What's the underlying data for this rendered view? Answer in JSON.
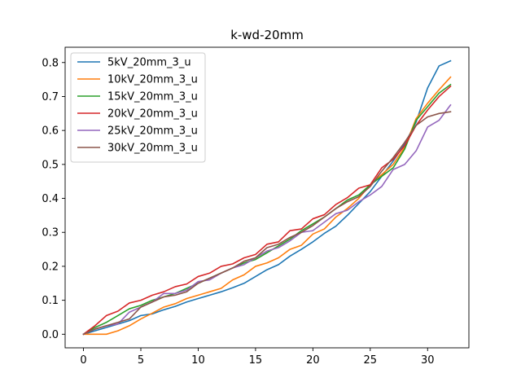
{
  "chart_data": {
    "type": "line",
    "title": "k-wd-20mm",
    "xlabel": "",
    "ylabel": "",
    "xlim": [
      -1.6,
      33.6
    ],
    "ylim": [
      -0.04,
      0.845
    ],
    "xticks": [
      0,
      5,
      10,
      15,
      20,
      25,
      30
    ],
    "xtick_labels": [
      "0",
      "5",
      "10",
      "15",
      "20",
      "25",
      "30"
    ],
    "yticks": [
      0.0,
      0.1,
      0.2,
      0.3,
      0.4,
      0.5,
      0.6,
      0.7,
      0.8
    ],
    "ytick_labels": [
      "0.0",
      "0.1",
      "0.2",
      "0.3",
      "0.4",
      "0.5",
      "0.6",
      "0.7",
      "0.8"
    ],
    "grid": false,
    "legend_position": "top-left",
    "x": [
      0,
      1,
      2,
      3,
      4,
      5,
      6,
      7,
      8,
      9,
      10,
      11,
      12,
      13,
      14,
      15,
      16,
      17,
      18,
      19,
      20,
      21,
      22,
      23,
      24,
      25,
      26,
      27,
      28,
      29,
      30,
      31,
      32
    ],
    "series": [
      {
        "name": "5kV_20mm_3_u",
        "color": "#1f77b4",
        "values": [
          0.0,
          0.01,
          0.02,
          0.03,
          0.04,
          0.055,
          0.06,
          0.072,
          0.082,
          0.095,
          0.105,
          0.115,
          0.125,
          0.137,
          0.15,
          0.17,
          0.19,
          0.205,
          0.23,
          0.25,
          0.272,
          0.297,
          0.318,
          0.35,
          0.385,
          0.42,
          0.465,
          0.51,
          0.56,
          0.625,
          0.725,
          0.79,
          0.805
        ]
      },
      {
        "name": "10kV_20mm_3_u",
        "color": "#ff7f0e",
        "values": [
          0.0,
          0.0,
          0.0,
          0.01,
          0.025,
          0.045,
          0.062,
          0.08,
          0.09,
          0.105,
          0.115,
          0.125,
          0.135,
          0.16,
          0.175,
          0.2,
          0.21,
          0.225,
          0.25,
          0.262,
          0.295,
          0.31,
          0.345,
          0.37,
          0.4,
          0.44,
          0.47,
          0.5,
          0.55,
          0.635,
          0.68,
          0.72,
          0.757
        ]
      },
      {
        "name": "15kV_20mm_3_u",
        "color": "#2ca02c",
        "values": [
          0.0,
          0.02,
          0.035,
          0.055,
          0.075,
          0.085,
          0.1,
          0.11,
          0.12,
          0.135,
          0.15,
          0.165,
          0.18,
          0.195,
          0.21,
          0.22,
          0.24,
          0.26,
          0.28,
          0.305,
          0.325,
          0.345,
          0.37,
          0.395,
          0.41,
          0.44,
          0.465,
          0.49,
          0.545,
          0.63,
          0.67,
          0.71,
          0.735
        ]
      },
      {
        "name": "20kV_20mm_3_u",
        "color": "#d62728",
        "values": [
          0.0,
          0.025,
          0.055,
          0.068,
          0.092,
          0.1,
          0.115,
          0.125,
          0.14,
          0.148,
          0.17,
          0.18,
          0.2,
          0.207,
          0.225,
          0.235,
          0.265,
          0.272,
          0.305,
          0.31,
          0.34,
          0.352,
          0.382,
          0.402,
          0.43,
          0.44,
          0.49,
          0.515,
          0.555,
          0.615,
          0.66,
          0.7,
          0.73
        ]
      },
      {
        "name": "25kV_20mm_3_u",
        "color": "#9467bd",
        "values": [
          0.0,
          0.015,
          0.025,
          0.03,
          0.065,
          0.08,
          0.095,
          0.12,
          0.12,
          0.13,
          0.155,
          0.16,
          0.18,
          0.195,
          0.205,
          0.225,
          0.245,
          0.255,
          0.275,
          0.3,
          0.305,
          0.33,
          0.355,
          0.365,
          0.39,
          0.41,
          0.435,
          0.485,
          0.5,
          0.54,
          0.61,
          0.63,
          0.675
        ]
      },
      {
        "name": "30kV_20mm_3_u",
        "color": "#8c564b",
        "values": [
          0.0,
          0.015,
          0.025,
          0.035,
          0.045,
          0.08,
          0.095,
          0.11,
          0.115,
          0.125,
          0.15,
          0.165,
          0.18,
          0.195,
          0.215,
          0.225,
          0.255,
          0.265,
          0.285,
          0.3,
          0.32,
          0.345,
          0.37,
          0.39,
          0.405,
          0.435,
          0.48,
          0.52,
          0.565,
          0.615,
          0.64,
          0.65,
          0.655
        ]
      }
    ]
  }
}
